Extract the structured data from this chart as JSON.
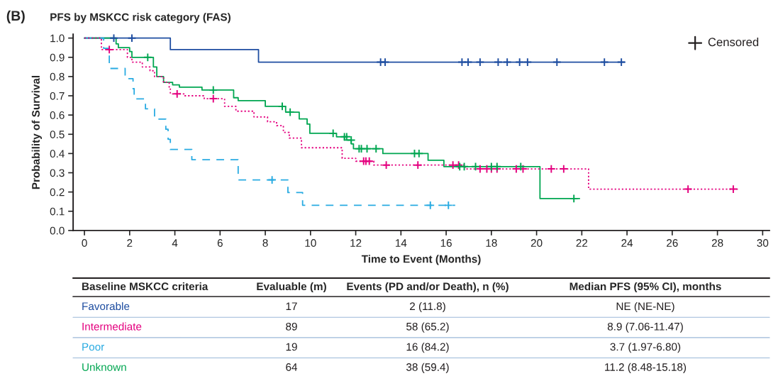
{
  "chart_data": {
    "type": "step",
    "title": "(B)",
    "subtitle": "PFS by MSKCC risk category (FAS)",
    "xlabel": "Time to Event (Months)",
    "ylabel": "Probability of Survival",
    "xlim": [
      -0.5,
      30.3
    ],
    "xticks": [
      0,
      2,
      4,
      6,
      8,
      10,
      12,
      14,
      16,
      18,
      20,
      22,
      24,
      26,
      28,
      30
    ],
    "ylim": [
      0,
      1.02
    ],
    "yticks": [
      {
        "value": 0,
        "label": "0.0"
      },
      0.1,
      0.2,
      0.3,
      0.4,
      0.5,
      0.6,
      0.7,
      0.8,
      0.9,
      {
        "value": 1,
        "label": "1.0"
      }
    ],
    "grid": false,
    "legend": "bottom left",
    "legend_title": "Censored",
    "series": [
      {
        "name": "Favorable",
        "color": "#1f4ea1",
        "line_style": "solid",
        "x": [
          0,
          3.8,
          7.7,
          23.9
        ],
        "values": [
          1.0,
          0.94,
          0.875,
          0.875
        ]
      },
      {
        "name": "Intermediate",
        "color": "#e4007f",
        "line_style": "dotted",
        "x": [
          0,
          0.75,
          1.9,
          2.1,
          2.56,
          2.9,
          3.1,
          3.5,
          3.75,
          3.8,
          4.4,
          5.3,
          6.2,
          6.7,
          7.5,
          8.1,
          8.5,
          8.8,
          9.06,
          9.6,
          11.4,
          12.0,
          12.8,
          16.85,
          22.3,
          28.9
        ],
        "values": [
          1.0,
          0.94,
          0.9,
          0.875,
          0.85,
          0.83,
          0.8,
          0.77,
          0.745,
          0.71,
          0.7,
          0.685,
          0.645,
          0.62,
          0.59,
          0.565,
          0.545,
          0.51,
          0.48,
          0.43,
          0.375,
          0.36,
          0.34,
          0.32,
          0.215,
          0.215
        ]
      },
      {
        "name": "Poor",
        "color": "#29abe2",
        "line_style": "dashed",
        "x": [
          0,
          0.85,
          1.1,
          1.8,
          2.15,
          2.2,
          2.7,
          3.1,
          3.6,
          3.7,
          3.8,
          4.75,
          6.8,
          9.0,
          9.65,
          16.4
        ],
        "values": [
          1.0,
          0.947,
          0.842,
          0.789,
          0.737,
          0.684,
          0.632,
          0.579,
          0.526,
          0.474,
          0.421,
          0.368,
          0.263,
          0.197,
          0.131,
          0.131
        ]
      },
      {
        "name": "Unknown",
        "color": "#00a651",
        "line_style": "solid",
        "x": [
          0,
          1.4,
          1.5,
          2.0,
          2.1,
          3.05,
          3.2,
          3.5,
          3.9,
          4.2,
          5.2,
          6.6,
          6.8,
          8.0,
          8.9,
          9.5,
          9.85,
          9.97,
          11.15,
          11.5,
          11.8,
          11.9,
          13.2,
          15.2,
          15.9,
          20.15,
          21.9
        ],
        "values": [
          1.0,
          0.97,
          0.95,
          0.93,
          0.9,
          0.85,
          0.8,
          0.77,
          0.757,
          0.745,
          0.73,
          0.69,
          0.675,
          0.645,
          0.615,
          0.58,
          0.553,
          0.505,
          0.487,
          0.47,
          0.45,
          0.425,
          0.4,
          0.365,
          0.332,
          0.166,
          0.166
        ]
      },
      {
        "type": "scatter",
        "marker": "cross",
        "color": "#1f4ea1",
        "x": [
          1.3,
          2.1,
          13.1,
          13.3,
          16.7,
          16.97,
          17.5,
          18.3,
          18.7,
          19.25,
          19.6,
          20.9,
          23.0,
          23.75
        ],
        "values": [
          1.0,
          1.0,
          0.875,
          0.875,
          0.875,
          0.875,
          0.875,
          0.875,
          0.875,
          0.875,
          0.875,
          0.875,
          0.875,
          0.875
        ]
      },
      {
        "type": "scatter",
        "marker": "cross",
        "color": "#e4007f",
        "x": [
          1.1,
          4.1,
          5.7,
          12.35,
          12.45,
          12.6,
          13.35,
          14.75,
          16.3,
          16.55,
          17.5,
          17.8,
          18.0,
          18.25,
          19.1,
          19.4,
          20.65,
          21.2,
          26.7,
          28.7
        ],
        "values": [
          0.94,
          0.71,
          0.685,
          0.36,
          0.36,
          0.36,
          0.34,
          0.34,
          0.34,
          0.34,
          0.32,
          0.32,
          0.32,
          0.32,
          0.32,
          0.32,
          0.32,
          0.32,
          0.215,
          0.215
        ]
      },
      {
        "type": "scatter",
        "marker": "cross",
        "color": "#29abe2",
        "x": [
          8.3,
          15.3,
          16.1
        ],
        "values": [
          0.263,
          0.131,
          0.131
        ]
      },
      {
        "type": "scatter",
        "marker": "cross",
        "color": "#00a651",
        "x": [
          2.8,
          5.7,
          8.75,
          9.1,
          11.0,
          11.5,
          11.6,
          11.8,
          12.15,
          12.25,
          12.5,
          12.9,
          14.6,
          14.8,
          16.6,
          16.8,
          17.3,
          18.0,
          18.25,
          19.3,
          21.65
        ],
        "values": [
          0.9,
          0.73,
          0.645,
          0.615,
          0.505,
          0.487,
          0.487,
          0.47,
          0.425,
          0.425,
          0.425,
          0.425,
          0.4,
          0.4,
          0.332,
          0.332,
          0.332,
          0.332,
          0.332,
          0.332,
          0.166
        ]
      }
    ],
    "annotations": [
      "Baseline MSKCC criteria",
      "Evaluable (m)",
      "Events (PD and/or Death), n (%)",
      "Median PFS (95% CI), months",
      "17",
      "2 (11.8)",
      "NE (NE-NE)",
      "89",
      "58 (65.2)",
      "8.9 (7.06-11.47)",
      "19",
      "16 (84.2)",
      "3.7 (1.97-6.80)",
      "64",
      "38 (59.4)",
      "11.2 (8.48-15.18)"
    ]
  }
}
